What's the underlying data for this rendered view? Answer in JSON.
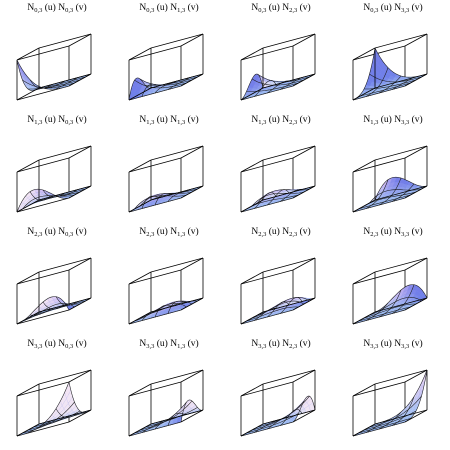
{
  "colors": {
    "plane": "#a9cdf5",
    "plane_edge": "#5c7fb0",
    "surface_light": "#f6e9f4",
    "surface_mid": "#c9b8f2",
    "surface_dark": "#5f6fe6",
    "mesh": "#1a1a1a",
    "box": "#000000"
  },
  "panels": [
    {
      "i": 0,
      "j": 0,
      "label": {
        "a": "N",
        "asub": "0,3",
        "am": "(u)",
        "b": "N",
        "bsub": "0,3",
        "bm": "(v)"
      }
    },
    {
      "i": 0,
      "j": 1,
      "label": {
        "a": "N",
        "asub": "0,3",
        "am": "(u)",
        "b": "N",
        "bsub": "1,3",
        "bm": "(v)"
      }
    },
    {
      "i": 0,
      "j": 2,
      "label": {
        "a": "N",
        "asub": "0,3",
        "am": "(u)",
        "b": "N",
        "bsub": "2,3",
        "bm": "(v)"
      }
    },
    {
      "i": 0,
      "j": 3,
      "label": {
        "a": "N",
        "asub": "0,3",
        "am": "(u)",
        "b": "N",
        "bsub": "3,3",
        "bm": "(v)"
      }
    },
    {
      "i": 1,
      "j": 0,
      "label": {
        "a": "N",
        "asub": "1,3",
        "am": "(u)",
        "b": "N",
        "bsub": "0,3",
        "bm": "(v)"
      }
    },
    {
      "i": 1,
      "j": 1,
      "label": {
        "a": "N",
        "asub": "1,3",
        "am": "(u)",
        "b": "N",
        "bsub": "1,3",
        "bm": "(v)"
      }
    },
    {
      "i": 1,
      "j": 2,
      "label": {
        "a": "N",
        "asub": "1,3",
        "am": "(u)",
        "b": "N",
        "bsub": "2,3",
        "bm": "(v)"
      }
    },
    {
      "i": 1,
      "j": 3,
      "label": {
        "a": "N",
        "asub": "1,3",
        "am": "(u)",
        "b": "N",
        "bsub": "3,3",
        "bm": "(v)"
      }
    },
    {
      "i": 2,
      "j": 0,
      "label": {
        "a": "N",
        "asub": "2,3",
        "am": "(u)",
        "b": "N",
        "bsub": "0,3",
        "bm": "(v)"
      }
    },
    {
      "i": 2,
      "j": 1,
      "label": {
        "a": "N",
        "asub": "2,3",
        "am": "(u)",
        "b": "N",
        "bsub": "1,3",
        "bm": "(v)"
      }
    },
    {
      "i": 2,
      "j": 2,
      "label": {
        "a": "N",
        "asub": "2,3",
        "am": "(u)",
        "b": "N",
        "bsub": "2,3",
        "bm": "(v)"
      }
    },
    {
      "i": 2,
      "j": 3,
      "label": {
        "a": "N",
        "asub": "2,3",
        "am": "(u)",
        "b": "N",
        "bsub": "3,3",
        "bm": "(v)"
      }
    },
    {
      "i": 3,
      "j": 0,
      "label": {
        "a": "N",
        "asub": "3,3",
        "am": "(u)",
        "b": "N",
        "bsub": "0,3",
        "bm": "(v)"
      }
    },
    {
      "i": 3,
      "j": 1,
      "label": {
        "a": "N",
        "asub": "3,3",
        "am": "(u)",
        "b": "N",
        "bsub": "1,3",
        "bm": "(v)"
      }
    },
    {
      "i": 3,
      "j": 2,
      "label": {
        "a": "N",
        "asub": "3,3",
        "am": "(u)",
        "b": "N",
        "bsub": "2,3",
        "bm": "(v)"
      }
    },
    {
      "i": 3,
      "j": 3,
      "label": {
        "a": "N",
        "asub": "3,3",
        "am": "(u)",
        "b": "N",
        "bsub": "3,3",
        "bm": "(v)"
      }
    }
  ]
}
